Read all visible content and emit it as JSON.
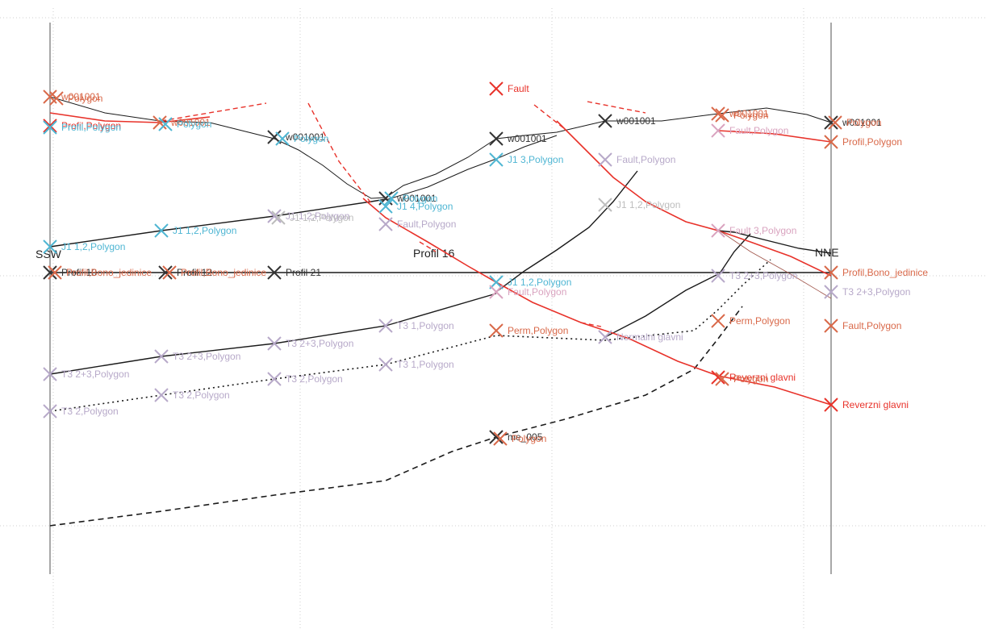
{
  "section": {
    "left_end": "SSW",
    "right_end": "NNE",
    "mid_title": "Profil 16"
  },
  "colors": {
    "black": "#1a1a1a",
    "red": "#e8322a",
    "orange": "#d9694a",
    "cyan": "#4fb6d3",
    "lavender": "#b7a9c9",
    "pink": "#d9a3bf",
    "grey": "#bdbdbd",
    "axis": "#8c8c8c"
  },
  "markers": [
    {
      "label": "w001001",
      "color": "#d9694a"
    },
    {
      "label": "Polygon",
      "color": "#d9694a"
    },
    {
      "label": "Profil,Polygon",
      "color": "#e8322a"
    },
    {
      "label": "Profil,Polygon",
      "color": "#4fb6d3"
    },
    {
      "label": "w001001",
      "color": "#d9694a"
    },
    {
      "label": "Polygon",
      "color": "#4fb6d3"
    },
    {
      "label": "w001001",
      "color": "#333333"
    },
    {
      "label": "Polygon",
      "color": "#4fb6d3"
    },
    {
      "label": "J1 1,2,Polygon",
      "color": "#4fb6d3"
    },
    {
      "label": "Profil 10",
      "color": "#333333"
    },
    {
      "label": "Profil,Bono_jedinice",
      "color": "#d9694a"
    },
    {
      "label": "J1 1,2,Polygon",
      "color": "#4fb6d3"
    },
    {
      "label": "Profil 12",
      "color": "#333333"
    },
    {
      "label": "Profil,Bono_jedinice",
      "color": "#d9694a"
    },
    {
      "label": "Profil 21",
      "color": "#333333"
    },
    {
      "label": "J1 1,2,Polygon",
      "color": "#b7a9c9"
    },
    {
      "label": "J1 1,2,Polygon",
      "color": "#bdbdbd"
    },
    {
      "label": "w001001",
      "color": "#333333"
    },
    {
      "label": "Polygon",
      "color": "#4fb6d3"
    },
    {
      "label": "J1 4,Polygon",
      "color": "#4fb6d3"
    },
    {
      "label": "Fault,Polygon",
      "color": "#b7a9c9"
    },
    {
      "label": "Fault",
      "color": "#e8322a"
    },
    {
      "label": "w001001",
      "color": "#333333"
    },
    {
      "label": "J1 3,Polygon",
      "color": "#4fb6d3"
    },
    {
      "label": "J1 1,2,Polygon",
      "color": "#4fb6d3"
    },
    {
      "label": "Fault,Polygon",
      "color": "#d9a3bf"
    },
    {
      "label": "Perm,Polygon",
      "color": "#d9694a"
    },
    {
      "label": "w001001",
      "color": "#333333"
    },
    {
      "label": "Fault,Polygon",
      "color": "#b7a9c9"
    },
    {
      "label": "J1 1,2,Polygon",
      "color": "#bdbdbd"
    },
    {
      "label": "Normalni glavni",
      "color": "#b7a9c9"
    },
    {
      "label": "w001001",
      "color": "#d9694a"
    },
    {
      "label": "Polygon",
      "color": "#d9694a"
    },
    {
      "label": "Fault,Polygon",
      "color": "#d9a3bf"
    },
    {
      "label": "Fault 3,Polygon",
      "color": "#d9a3bf"
    },
    {
      "label": "Perm,Polygon",
      "color": "#d9694a"
    },
    {
      "label": "Reverzni glavni",
      "color": "#e8322a"
    },
    {
      "label": "Polygon",
      "color": "#d9694a"
    },
    {
      "label": "T3 2+3,Polygon",
      "color": "#b7a9c9"
    },
    {
      "label": "w001001",
      "color": "#333333"
    },
    {
      "label": "Polygon",
      "color": "#d9694a"
    },
    {
      "label": "Profil,Polygon",
      "color": "#d9694a"
    },
    {
      "label": "Profil,Bono_jedinice",
      "color": "#d9694a"
    },
    {
      "label": "T3 2+3,Polygon",
      "color": "#b7a9c9"
    },
    {
      "label": "Fault,Polygon",
      "color": "#d9694a"
    },
    {
      "label": "Reverzni glavni",
      "color": "#e8322a"
    },
    {
      "label": "T3 2+3,Polygon",
      "color": "#b7a9c9"
    },
    {
      "label": "T3 2+3,Polygon",
      "color": "#b7a9c9"
    },
    {
      "label": "T3 2+3,Polygon",
      "color": "#b7a9c9"
    },
    {
      "label": "T3 1,Polygon",
      "color": "#b7a9c9"
    },
    {
      "label": "T3 2,Polygon",
      "color": "#b7a9c9"
    },
    {
      "label": "T3 2,Polygon",
      "color": "#b7a9c9"
    },
    {
      "label": "T3 2,Polygon",
      "color": "#b7a9c9"
    },
    {
      "label": "T3 1,Polygon",
      "color": "#b7a9c9"
    },
    {
      "label": "me_005",
      "color": "#333333"
    },
    {
      "label": "Polygon",
      "color": "#d9694a"
    }
  ]
}
